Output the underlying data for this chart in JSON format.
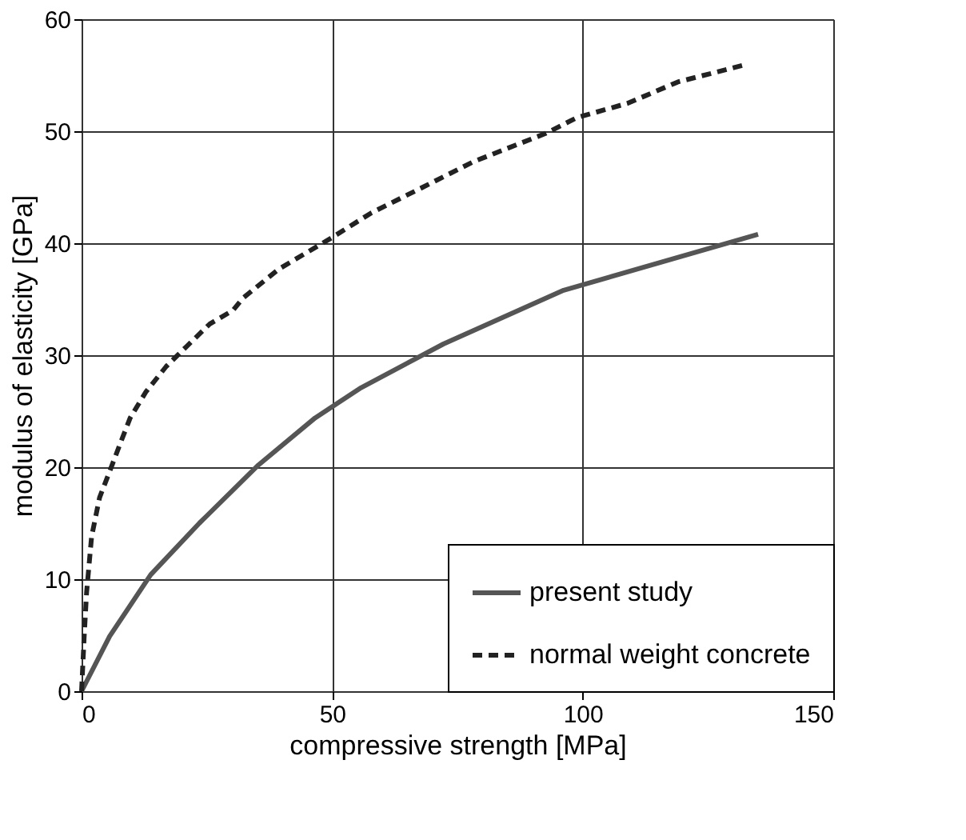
{
  "chart_data": {
    "type": "line",
    "xlabel": "compressive strength [MPa]",
    "ylabel": "modulus of elasticity [GPa]",
    "xlim": [
      0,
      150
    ],
    "xticks": [
      0,
      50,
      100,
      150
    ],
    "ylim": [
      0,
      60
    ],
    "yticks": [
      0,
      10,
      20,
      30,
      40,
      50,
      60
    ],
    "grid": true,
    "legend": "bottom right",
    "series": [
      {
        "name": "present study",
        "color": "#555555",
        "line_style": "solid",
        "x": [
          0,
          5.6,
          13.8,
          23.5,
          35.3,
          46.6,
          55.8,
          72.2,
          96.2,
          135
        ],
        "values": [
          0,
          4.9,
          10.4,
          15,
          20.2,
          24.4,
          27.1,
          31,
          35.8,
          40.8
        ]
      },
      {
        "name": "normal weight concrete",
        "color": "#222222",
        "line_style": "dashed",
        "x": [
          0,
          0.5,
          1,
          2,
          3.6,
          6.1,
          7.7,
          9.7,
          12.8,
          16.9,
          21,
          25.6,
          30.2,
          32.2,
          39.4,
          49.6,
          57.8,
          68.1,
          78.3,
          92.6,
          98.8,
          109,
          119,
          133
        ],
        "values": [
          0,
          4.7,
          8.8,
          13.8,
          17.3,
          20.2,
          22.1,
          24.4,
          26.7,
          29,
          30.8,
          32.8,
          34,
          35.1,
          37.7,
          40.4,
          42.7,
          45,
          47.3,
          49.8,
          51.2,
          52.5,
          54.4,
          56
        ]
      }
    ]
  }
}
